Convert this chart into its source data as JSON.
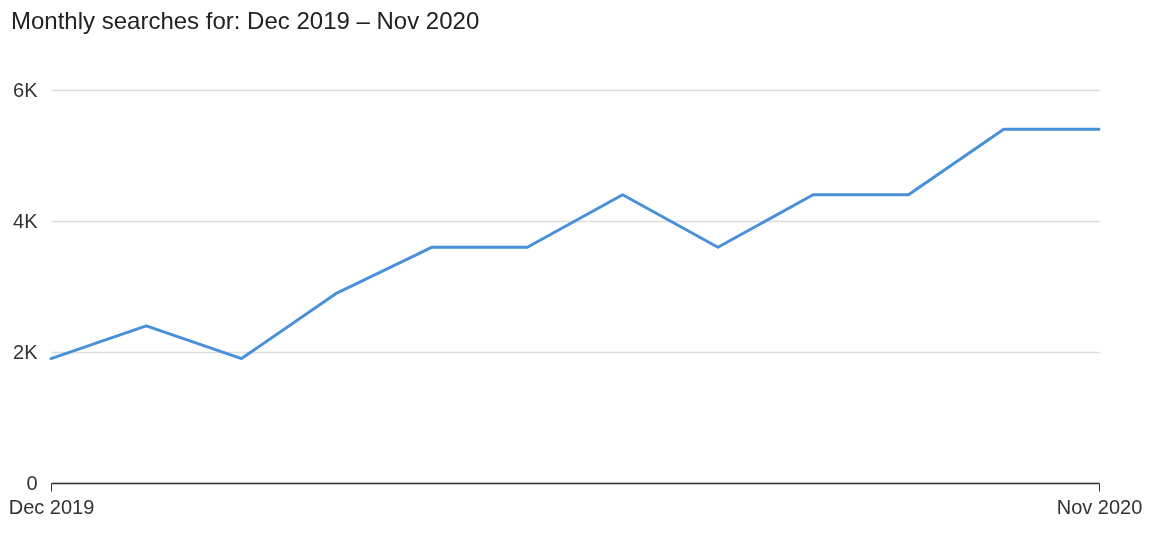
{
  "chart_data": {
    "type": "line",
    "title": "Monthly searches for: Dec 2019 – Nov 2020",
    "categories": [
      "Dec 2019",
      null,
      null,
      null,
      null,
      null,
      null,
      null,
      null,
      null,
      null,
      "Nov 2020"
    ],
    "series": [
      {
        "color": "#4a90d9",
        "values": [
          1900,
          2400,
          1900,
          2900,
          3600,
          3600,
          4400,
          3600,
          4400,
          4400,
          5400,
          5400
        ]
      }
    ],
    "ylim": [
      0,
      6000
    ],
    "yticks": [
      {
        "value": 0,
        "label": "0"
      },
      {
        "value": 2000,
        "label": "2K"
      },
      {
        "value": 4000,
        "label": "4K"
      },
      {
        "value": 6000,
        "label": "6K"
      }
    ],
    "grid": "y",
    "legend": false,
    "marker": "none",
    "line_style": "solid"
  }
}
